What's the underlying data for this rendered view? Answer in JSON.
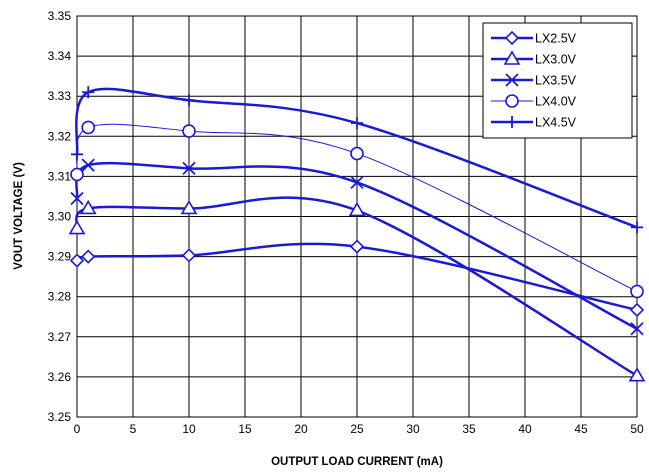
{
  "chart_data": {
    "type": "line",
    "title": "",
    "xlabel": "OUTPUT LOAD CURRENT (mA)",
    "ylabel": "VOUT VOLTAGE (V)",
    "x_ticks": [
      "0",
      "5",
      "10",
      "15",
      "20",
      "25",
      "30",
      "35",
      "40",
      "45",
      "50"
    ],
    "y_ticks": [
      "3.25",
      "3.26",
      "3.27",
      "3.28",
      "3.29",
      "3.30",
      "3.31",
      "3.32",
      "3.33",
      "3.34",
      "3.35"
    ],
    "xlim": [
      0,
      50
    ],
    "ylim": [
      3.25,
      3.35
    ],
    "grid": true,
    "legend_position": "top-right",
    "line_color": "#1a1ad6",
    "series": [
      {
        "name": "LX2.5V",
        "marker": "diamond",
        "x": [
          0,
          1,
          10,
          25,
          50
        ],
        "y": [
          3.289,
          3.29,
          3.2903,
          3.2925,
          3.2767
        ]
      },
      {
        "name": "LX3.0V",
        "marker": "triangle",
        "x": [
          0,
          1,
          10,
          25,
          50
        ],
        "y": [
          3.297,
          3.302,
          3.302,
          3.3015,
          3.2603
        ]
      },
      {
        "name": "LX3.5V",
        "marker": "x",
        "x": [
          0,
          1,
          10,
          25,
          50
        ],
        "y": [
          3.3045,
          3.3128,
          3.312,
          3.3085,
          3.272
        ]
      },
      {
        "name": "LX4.0V",
        "marker": "circle",
        "x": [
          0,
          1,
          10,
          25,
          50
        ],
        "y": [
          3.3105,
          3.3222,
          3.3213,
          3.3157,
          3.2813
        ]
      },
      {
        "name": "LX4.5V",
        "marker": "plus",
        "x": [
          0,
          1,
          10,
          25,
          50
        ],
        "y": [
          3.3155,
          3.331,
          3.329,
          3.3233,
          3.2973
        ]
      }
    ]
  }
}
